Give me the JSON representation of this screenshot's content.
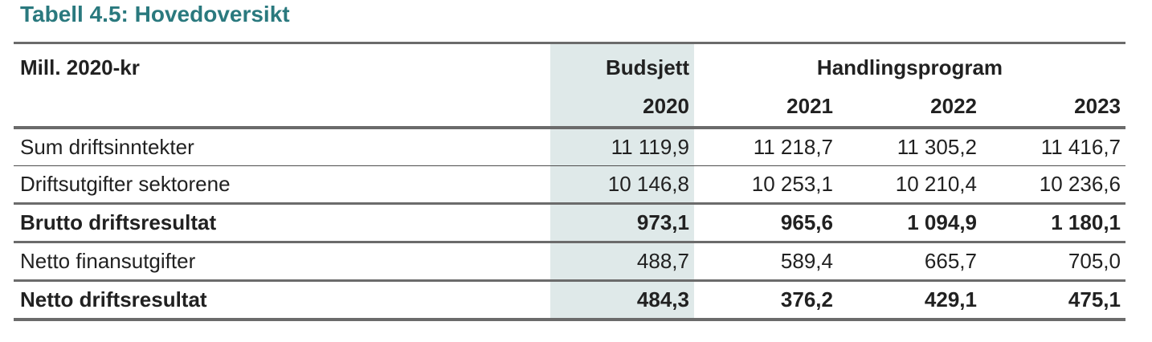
{
  "page": {
    "title": "Tabell 4.5: Hovedoversikt"
  },
  "table": {
    "unit_label": "Mill. 2020-kr",
    "budget_group_label": "Budsjett",
    "program_group_label": "Handlingsprogram",
    "years": [
      "2020",
      "2021",
      "2022",
      "2023"
    ],
    "rows": [
      {
        "label": "Sum driftsinntekter",
        "style": "regular",
        "values": [
          "11 119,9",
          "11 218,7",
          "11 305,2",
          "11 416,7"
        ]
      },
      {
        "label": "Driftsutgifter sektorene",
        "style": "regular",
        "values": [
          "10 146,8",
          "10 253,1",
          "10 210,4",
          "10 236,6"
        ]
      },
      {
        "label": "Brutto driftsresultat",
        "style": "bold",
        "values": [
          "973,1",
          "965,6",
          "1 094,9",
          "1 180,1"
        ]
      },
      {
        "label": "Netto finansutgifter",
        "style": "regular",
        "values": [
          "488,7",
          "589,4",
          "665,7",
          "705,0"
        ]
      },
      {
        "label": "Netto driftsresultat",
        "style": "bold",
        "values": [
          "484,3",
          "376,2",
          "429,1",
          "475,1"
        ]
      }
    ]
  },
  "colors": {
    "title_text": "#2A797E",
    "highlight_column_bg": "#DFE9E9",
    "rule_thick": "#6B6B6B",
    "rule_thin": "#4D4D4D",
    "body_text": "#212121"
  }
}
